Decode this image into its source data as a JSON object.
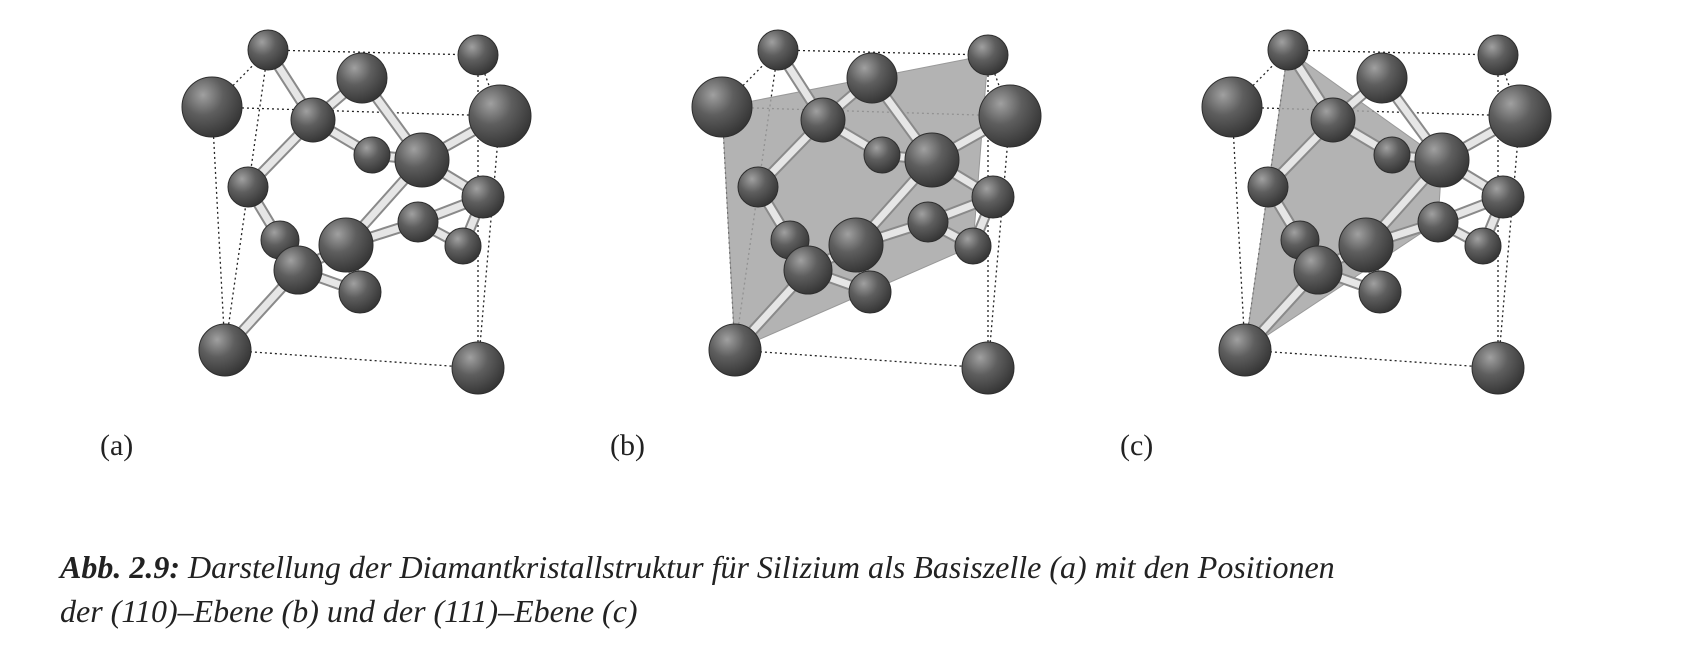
{
  "figure": {
    "panels": [
      {
        "label": "(a)",
        "plane": "none"
      },
      {
        "label": "(b)",
        "plane": "110"
      },
      {
        "label": "(c)",
        "plane": "111"
      }
    ],
    "colors": {
      "atom": "#555555",
      "atom_highlight": "#9a9a9a",
      "bond": "#e6e6e6",
      "plane": "#a6a6a6",
      "cell_edge": "#222222"
    }
  },
  "caption": {
    "lead": "Abb. 2.9:",
    "line1": " Darstellung der Diamantkristallstruktur für Silizium als Basiszelle (a) mit den Positionen",
    "line2": "der (110)–Ebene (b) und der (111)–Ebene (c)"
  }
}
